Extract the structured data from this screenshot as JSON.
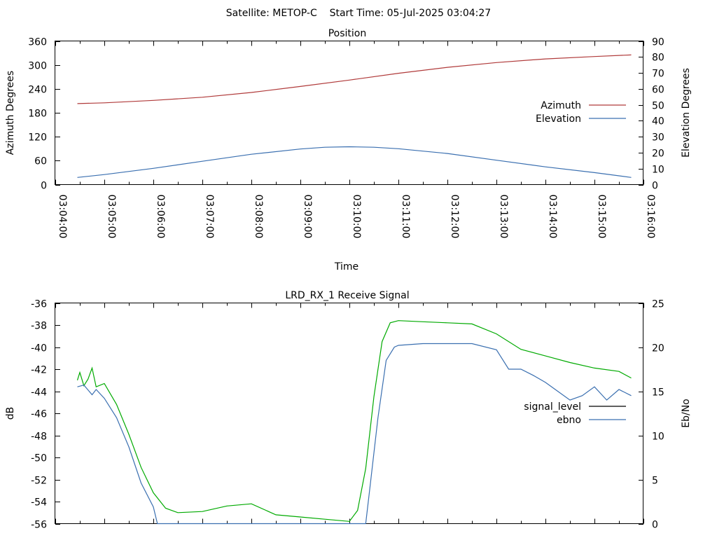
{
  "header": {
    "title": "Satellite: METOP-C    Start Time: 05-Jul-2025 03:04:27"
  },
  "colors": {
    "azimuth": "#b03a3a",
    "elevation": "#3a6fb0",
    "signal_level": "#00aa00",
    "ebno": "#3a6fb0",
    "signal_low_segment": "#a02020",
    "legend_signal_swatch": "#000000"
  },
  "chart_data": [
    {
      "type": "line",
      "title": "Position",
      "xlabel": "Time",
      "ylabel": "Azimuth Degrees",
      "y2label": "Elevation Degrees",
      "xlim": [
        "03:04:00",
        "03:16:00"
      ],
      "x_ticks": [
        "03:04:00",
        "03:05:00",
        "03:06:00",
        "03:07:00",
        "03:08:00",
        "03:09:00",
        "03:10:00",
        "03:11:00",
        "03:12:00",
        "03:13:00",
        "03:14:00",
        "03:15:00",
        "03:16:00"
      ],
      "ylim": [
        0,
        360
      ],
      "y_ticks": [
        0,
        60,
        120,
        180,
        240,
        300,
        360
      ],
      "y2lim": [
        0,
        90
      ],
      "y2_ticks": [
        0,
        10,
        20,
        30,
        40,
        50,
        60,
        70,
        80,
        90
      ],
      "legend_position": "right",
      "grid": false,
      "series": [
        {
          "name": "Azimuth",
          "axis": "y",
          "x": [
            "03:04:27",
            "03:05:00",
            "03:06:00",
            "03:07:00",
            "03:08:00",
            "03:09:00",
            "03:10:00",
            "03:11:00",
            "03:12:00",
            "03:13:00",
            "03:14:00",
            "03:15:00",
            "03:15:45"
          ],
          "values": [
            203,
            205,
            211,
            219,
            231,
            246,
            262,
            279,
            294,
            306,
            315,
            321,
            325
          ]
        },
        {
          "name": "Elevation",
          "axis": "y2",
          "x": [
            "03:04:27",
            "03:05:00",
            "03:06:00",
            "03:07:00",
            "03:08:00",
            "03:09:00",
            "03:09:30",
            "03:10:00",
            "03:10:30",
            "03:11:00",
            "03:12:00",
            "03:13:00",
            "03:14:00",
            "03:15:00",
            "03:15:45"
          ],
          "values": [
            4.5,
            6.3,
            10.2,
            14.6,
            19.0,
            22.3,
            23.4,
            23.7,
            23.4,
            22.5,
            19.5,
            15.3,
            11.1,
            7.5,
            4.5
          ]
        }
      ]
    },
    {
      "type": "line",
      "title": "LRD_RX_1 Receive Signal",
      "xlabel": "",
      "ylabel": "dB",
      "y2label": "Eb/No",
      "xlim": [
        "03:04:00",
        "03:16:00"
      ],
      "ylim": [
        -56,
        -36
      ],
      "y_ticks": [
        -56,
        -54,
        -52,
        -50,
        -48,
        -46,
        -44,
        -42,
        -40,
        -38,
        -36
      ],
      "y2lim": [
        0,
        25
      ],
      "y2_ticks": [
        0,
        5,
        10,
        15,
        20,
        25
      ],
      "legend_position": "right",
      "grid": false,
      "series": [
        {
          "name": "signal_level",
          "axis": "y",
          "x": [
            "03:04:27",
            "03:04:30",
            "03:04:35",
            "03:04:40",
            "03:04:45",
            "03:04:50",
            "03:05:00",
            "03:05:15",
            "03:05:30",
            "03:05:45",
            "03:06:00",
            "03:06:15",
            "03:06:30",
            "03:07:00",
            "03:07:30",
            "03:08:00",
            "03:08:30",
            "03:09:00",
            "03:09:30",
            "03:10:00",
            "03:10:10",
            "03:10:20",
            "03:10:30",
            "03:10:40",
            "03:10:50",
            "03:11:00",
            "03:11:30",
            "03:12:00",
            "03:12:30",
            "03:13:00",
            "03:13:30",
            "03:14:00",
            "03:14:30",
            "03:15:00",
            "03:15:30",
            "03:15:45"
          ],
          "values": [
            -43.0,
            -42.3,
            -43.5,
            -42.9,
            -41.9,
            -43.6,
            -43.3,
            -45.2,
            -47.9,
            -50.9,
            -53.2,
            -54.6,
            -55.0,
            -54.9,
            -54.4,
            -54.2,
            -55.2,
            -55.4,
            -55.6,
            -55.8,
            -54.8,
            -51.0,
            -44.5,
            -39.5,
            -37.8,
            -37.6,
            -37.7,
            -37.8,
            -37.9,
            -38.8,
            -40.2,
            -40.8,
            -41.4,
            -41.9,
            -42.2,
            -42.8
          ]
        },
        {
          "name": "ebno",
          "axis": "y2",
          "x": [
            "03:04:27",
            "03:04:35",
            "03:04:45",
            "03:04:50",
            "03:05:00",
            "03:05:15",
            "03:05:30",
            "03:05:45",
            "03:06:00",
            "03:06:05",
            "03:10:20",
            "03:10:25",
            "03:10:35",
            "03:10:45",
            "03:10:55",
            "03:11:00",
            "03:11:30",
            "03:12:00",
            "03:12:30",
            "03:13:00",
            "03:13:15",
            "03:13:30",
            "03:13:45",
            "03:14:00",
            "03:14:15",
            "03:14:30",
            "03:14:45",
            "03:15:00",
            "03:15:15",
            "03:15:30",
            "03:15:45"
          ],
          "values": [
            15.5,
            15.7,
            14.6,
            15.2,
            14.2,
            12.0,
            8.7,
            4.6,
            1.9,
            0.0,
            0.0,
            4.0,
            12.0,
            18.5,
            20.0,
            20.2,
            20.4,
            20.4,
            20.4,
            19.7,
            17.5,
            17.5,
            16.8,
            16.0,
            15.0,
            14.0,
            14.5,
            15.5,
            14.0,
            15.2,
            14.5
          ]
        }
      ]
    }
  ]
}
